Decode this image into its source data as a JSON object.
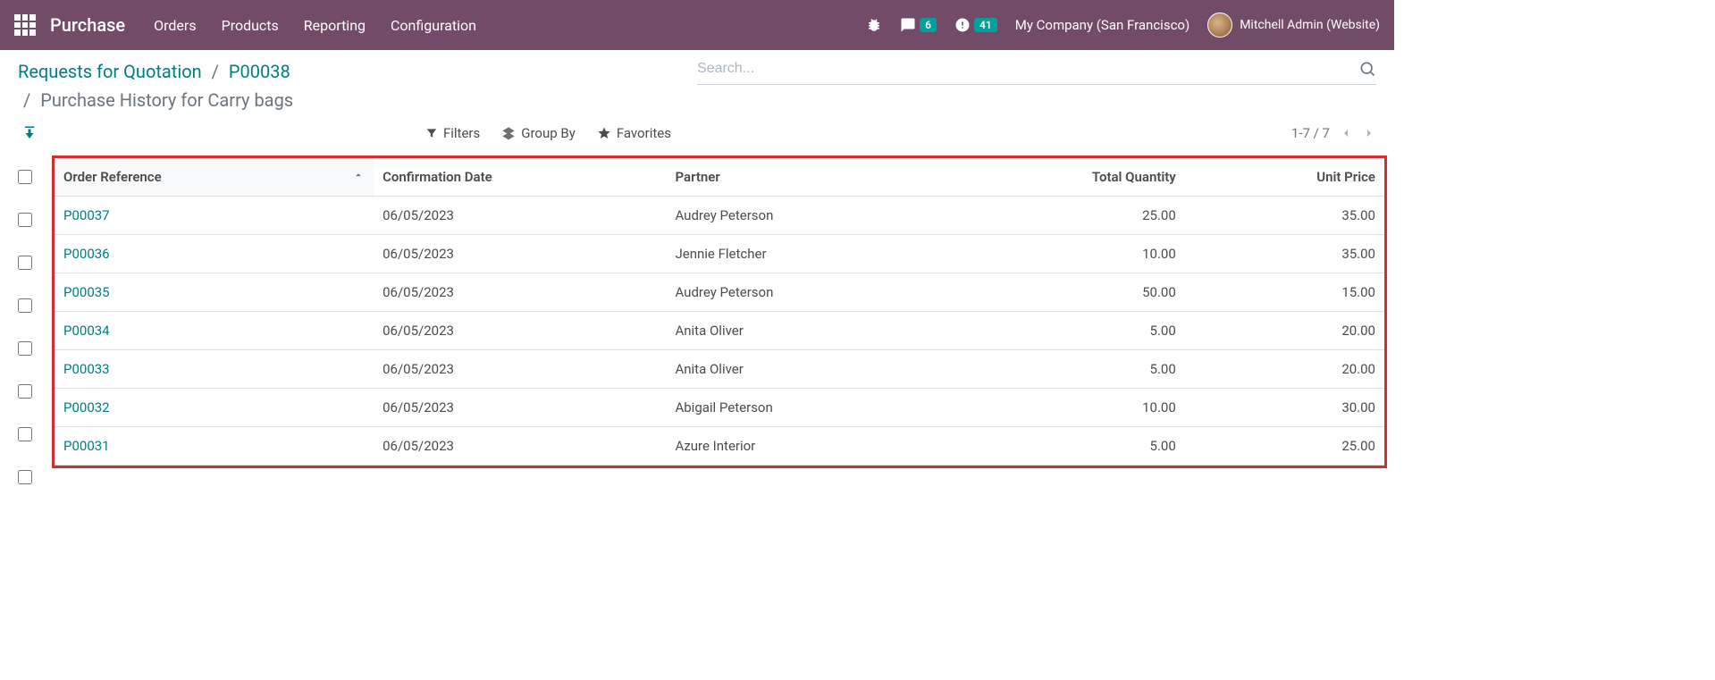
{
  "app": {
    "name": "Purchase"
  },
  "nav": {
    "orders": "Orders",
    "products": "Products",
    "reporting": "Reporting",
    "configuration": "Configuration"
  },
  "topbar": {
    "messages_badge": "6",
    "activities_badge": "41",
    "company": "My Company (San Francisco)",
    "user": "Mitchell Admin (Website)"
  },
  "breadcrumb": {
    "root": "Requests for Quotation",
    "order": "P00038",
    "current": "Purchase History for Carry bags"
  },
  "search": {
    "placeholder": "Search..."
  },
  "filters": {
    "filters_label": "Filters",
    "group_by_label": "Group By",
    "favorites_label": "Favorites"
  },
  "pager": {
    "text": "1-7 / 7"
  },
  "table": {
    "columns": {
      "order_ref": "Order Reference",
      "confirmation_date": "Confirmation Date",
      "partner": "Partner",
      "total_qty": "Total Quantity",
      "unit_price": "Unit Price"
    },
    "rows": [
      {
        "ref": "P00037",
        "date": "06/05/2023",
        "partner": "Audrey Peterson",
        "qty": "25.00",
        "price": "35.00"
      },
      {
        "ref": "P00036",
        "date": "06/05/2023",
        "partner": "Jennie Fletcher",
        "qty": "10.00",
        "price": "35.00"
      },
      {
        "ref": "P00035",
        "date": "06/05/2023",
        "partner": "Audrey Peterson",
        "qty": "50.00",
        "price": "15.00"
      },
      {
        "ref": "P00034",
        "date": "06/05/2023",
        "partner": "Anita Oliver",
        "qty": "5.00",
        "price": "20.00"
      },
      {
        "ref": "P00033",
        "date": "06/05/2023",
        "partner": "Anita Oliver",
        "qty": "5.00",
        "price": "20.00"
      },
      {
        "ref": "P00032",
        "date": "06/05/2023",
        "partner": "Abigail Peterson",
        "qty": "10.00",
        "price": "30.00"
      },
      {
        "ref": "P00031",
        "date": "06/05/2023",
        "partner": "Azure Interior",
        "qty": "5.00",
        "price": "25.00"
      }
    ]
  },
  "colors": {
    "primary": "#714B67",
    "accent": "#017e84",
    "highlight_border": "#d32f2f"
  }
}
